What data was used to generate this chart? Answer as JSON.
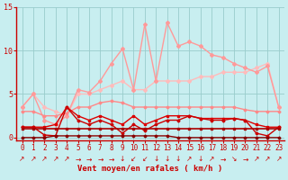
{
  "x": [
    0,
    1,
    2,
    3,
    4,
    5,
    6,
    7,
    8,
    9,
    10,
    11,
    12,
    13,
    14,
    15,
    16,
    17,
    18,
    19,
    20,
    21,
    22,
    23
  ],
  "ylim": [
    -0.3,
    15
  ],
  "yticks": [
    0,
    5,
    10,
    15
  ],
  "xlabel": "Vent moyen/en rafales ( km/h )",
  "bg_color": "#c8eef0",
  "grid_color": "#99cccc",
  "series": [
    {
      "y": [
        3.5,
        5.0,
        3.5,
        3.0,
        2.5,
        5.0,
        5.0,
        5.5,
        6.0,
        6.5,
        5.5,
        5.5,
        6.5,
        6.5,
        6.5,
        6.5,
        7.0,
        7.0,
        7.5,
        7.5,
        7.5,
        8.0,
        8.5,
        3.5
      ],
      "color": "#ffbbbb",
      "lw": 1.0,
      "marker": "D",
      "ms": 2.0,
      "zorder": 2
    },
    {
      "y": [
        3.5,
        5.0,
        2.0,
        1.5,
        2.5,
        5.5,
        5.2,
        6.5,
        8.5,
        10.2,
        5.5,
        13.0,
        6.5,
        13.2,
        10.5,
        11.0,
        10.5,
        9.5,
        9.2,
        8.5,
        8.0,
        7.5,
        8.2,
        3.5
      ],
      "color": "#ff9999",
      "lw": 1.0,
      "marker": "D",
      "ms": 2.0,
      "zorder": 2
    },
    {
      "y": [
        3.0,
        3.0,
        2.5,
        2.5,
        2.8,
        3.5,
        3.5,
        4.0,
        4.2,
        4.0,
        3.5,
        3.5,
        3.5,
        3.5,
        3.5,
        3.5,
        3.5,
        3.5,
        3.5,
        3.5,
        3.2,
        3.0,
        3.0,
        3.0
      ],
      "color": "#ff8888",
      "lw": 1.0,
      "marker": "D",
      "ms": 1.5,
      "zorder": 2
    },
    {
      "y": [
        1.2,
        1.2,
        1.2,
        1.5,
        3.5,
        2.5,
        2.0,
        2.5,
        2.0,
        1.5,
        2.5,
        1.5,
        2.0,
        2.5,
        2.5,
        2.5,
        2.2,
        2.2,
        2.2,
        2.2,
        2.0,
        1.5,
        1.2,
        1.2
      ],
      "color": "#dd0000",
      "lw": 1.0,
      "marker": "s",
      "ms": 2.0,
      "zorder": 3
    },
    {
      "y": [
        1.2,
        1.2,
        0.3,
        0.2,
        3.5,
        2.0,
        1.5,
        2.0,
        1.5,
        0.5,
        1.5,
        0.8,
        1.5,
        2.0,
        2.0,
        2.5,
        2.2,
        2.0,
        2.0,
        2.2,
        2.0,
        0.5,
        0.2,
        1.2
      ],
      "color": "#cc0000",
      "lw": 1.0,
      "marker": "D",
      "ms": 1.5,
      "zorder": 3
    },
    {
      "y": [
        1.0,
        1.0,
        1.0,
        1.0,
        1.0,
        1.0,
        1.0,
        1.0,
        1.0,
        1.0,
        1.0,
        1.0,
        1.0,
        1.0,
        1.0,
        1.0,
        1.0,
        1.0,
        1.0,
        1.0,
        1.0,
        1.0,
        1.0,
        1.0
      ],
      "color": "#aa0000",
      "lw": 1.2,
      "marker": "s",
      "ms": 2.0,
      "zorder": 3
    },
    {
      "y": [
        0.0,
        0.0,
        0.0,
        0.2,
        0.2,
        0.2,
        0.2,
        0.2,
        0.2,
        0.2,
        0.2,
        0.2,
        0.2,
        0.2,
        0.0,
        0.0,
        0.0,
        0.0,
        0.0,
        0.0,
        0.0,
        0.0,
        0.0,
        0.0
      ],
      "color": "#880000",
      "lw": 1.0,
      "marker": "D",
      "ms": 1.5,
      "zorder": 3
    }
  ],
  "arrows": [
    "↗",
    "↗",
    "↗",
    "↗",
    "↗",
    "→",
    "→",
    "→",
    "→",
    "↓",
    "↙",
    "↙",
    "↓",
    "↓",
    "↓",
    "↗",
    "↓",
    "↗",
    "→",
    "↘",
    "→",
    "↗",
    "↗",
    "↗"
  ],
  "title_color": "#cc0000",
  "axis_color": "#cc0000",
  "label_fontsize": 5.5,
  "xlabel_fontsize": 6.5
}
